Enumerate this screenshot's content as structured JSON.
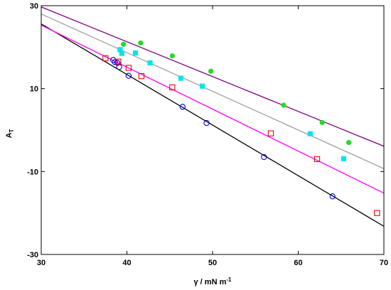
{
  "chart_data": {
    "type": "scatter",
    "title": "",
    "xlabel": {
      "main": "γ / mN m",
      "sup": "-1"
    },
    "ylabel": {
      "main": "A",
      "sub": "T"
    },
    "xlim": [
      30,
      70
    ],
    "ylim": [
      -30,
      30
    ],
    "x_ticks": [
      30,
      40,
      50,
      60,
      70
    ],
    "y_ticks": [
      -30,
      -10,
      10,
      30
    ],
    "grid": false,
    "legend": "none",
    "series": [
      {
        "marker": "open-circle",
        "color": "#0000cc",
        "line_color": "#000000",
        "fit": {
          "x": [
            30,
            70
          ],
          "y": [
            25.6,
            -23.2
          ]
        },
        "points": [
          [
            38.4,
            16.9
          ],
          [
            38.6,
            16.4
          ],
          [
            38.9,
            16.2
          ],
          [
            39.1,
            15.2
          ],
          [
            40.2,
            13.1
          ],
          [
            46.5,
            5.6
          ],
          [
            49.3,
            1.7
          ],
          [
            56.0,
            -6.5
          ],
          [
            64.0,
            -16.0
          ]
        ]
      },
      {
        "marker": "open-square",
        "color": "#ee0000",
        "line_color": "#ff00ff",
        "fit": {
          "x": [
            30,
            70
          ],
          "y": [
            25.3,
            -15.2
          ]
        },
        "points": [
          [
            37.5,
            17.3
          ],
          [
            39.0,
            16.5
          ],
          [
            40.2,
            15.0
          ],
          [
            41.7,
            13.0
          ],
          [
            45.3,
            10.3
          ],
          [
            56.8,
            -0.8
          ],
          [
            62.2,
            -7.0
          ],
          [
            69.2,
            -20.0
          ]
        ]
      },
      {
        "marker": "filled-square",
        "color": "#00e5ee",
        "line_color": "#a0a0a0",
        "fit": {
          "x": [
            30,
            70
          ],
          "y": [
            28.0,
            -9.3
          ]
        },
        "points": [
          [
            39.2,
            19.4
          ],
          [
            39.4,
            18.5
          ],
          [
            41.0,
            18.6
          ],
          [
            42.7,
            16.2
          ],
          [
            46.3,
            12.5
          ],
          [
            48.8,
            10.6
          ],
          [
            61.4,
            -0.9
          ],
          [
            65.3,
            -6.9
          ]
        ]
      },
      {
        "marker": "filled-circle",
        "color": "#22dd22",
        "line_color": "#800080",
        "fit": {
          "x": [
            30,
            70
          ],
          "y": [
            29.7,
            -3.9
          ]
        },
        "points": [
          [
            39.6,
            20.7
          ],
          [
            41.6,
            21.0
          ],
          [
            45.3,
            17.9
          ],
          [
            49.8,
            14.2
          ],
          [
            58.3,
            6.0
          ],
          [
            62.8,
            1.8
          ],
          [
            65.9,
            -3.0
          ]
        ]
      }
    ]
  }
}
